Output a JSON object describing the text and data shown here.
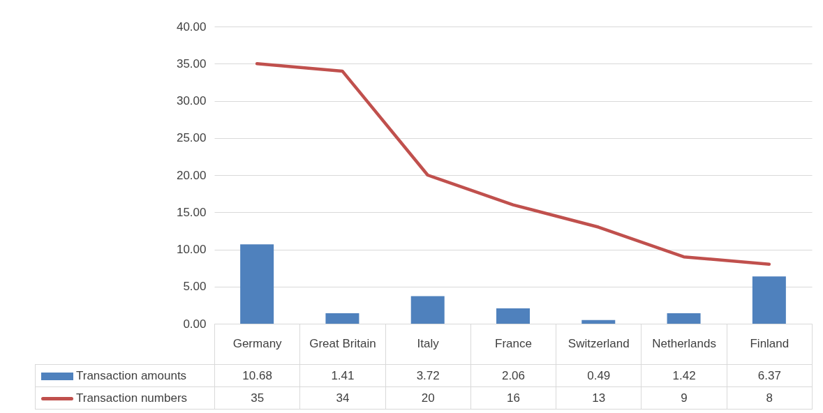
{
  "chart_data": {
    "type": "bar",
    "categories": [
      "Germany",
      "Great Britain",
      "Italy",
      "France",
      "Switzerland",
      "Netherlands",
      "Finland"
    ],
    "series": [
      {
        "name": "Transaction amounts",
        "color": "#4f81bd",
        "values": [
          10.68,
          1.41,
          3.72,
          2.06,
          0.49,
          1.42,
          6.37
        ]
      },
      {
        "name": "Transaction numbers",
        "type": "line",
        "color": "#c0504d",
        "values": [
          35,
          34,
          20,
          16,
          13,
          9,
          8
        ]
      }
    ],
    "ylim": [
      0,
      40
    ],
    "yticks": [
      {
        "value": 0,
        "label": "0.00"
      },
      {
        "value": 5,
        "label": "5.00"
      },
      {
        "value": 10,
        "label": "10.00"
      },
      {
        "value": 15,
        "label": "15.00"
      },
      {
        "value": 20,
        "label": "20.00"
      },
      {
        "value": 25,
        "label": "25.00"
      },
      {
        "value": 30,
        "label": "30.00"
      },
      {
        "value": 35,
        "label": "35.00"
      },
      {
        "value": 40,
        "label": "40.00"
      }
    ],
    "grid": "y",
    "legend": "bottom",
    "data_labels": true,
    "marker": "none"
  }
}
